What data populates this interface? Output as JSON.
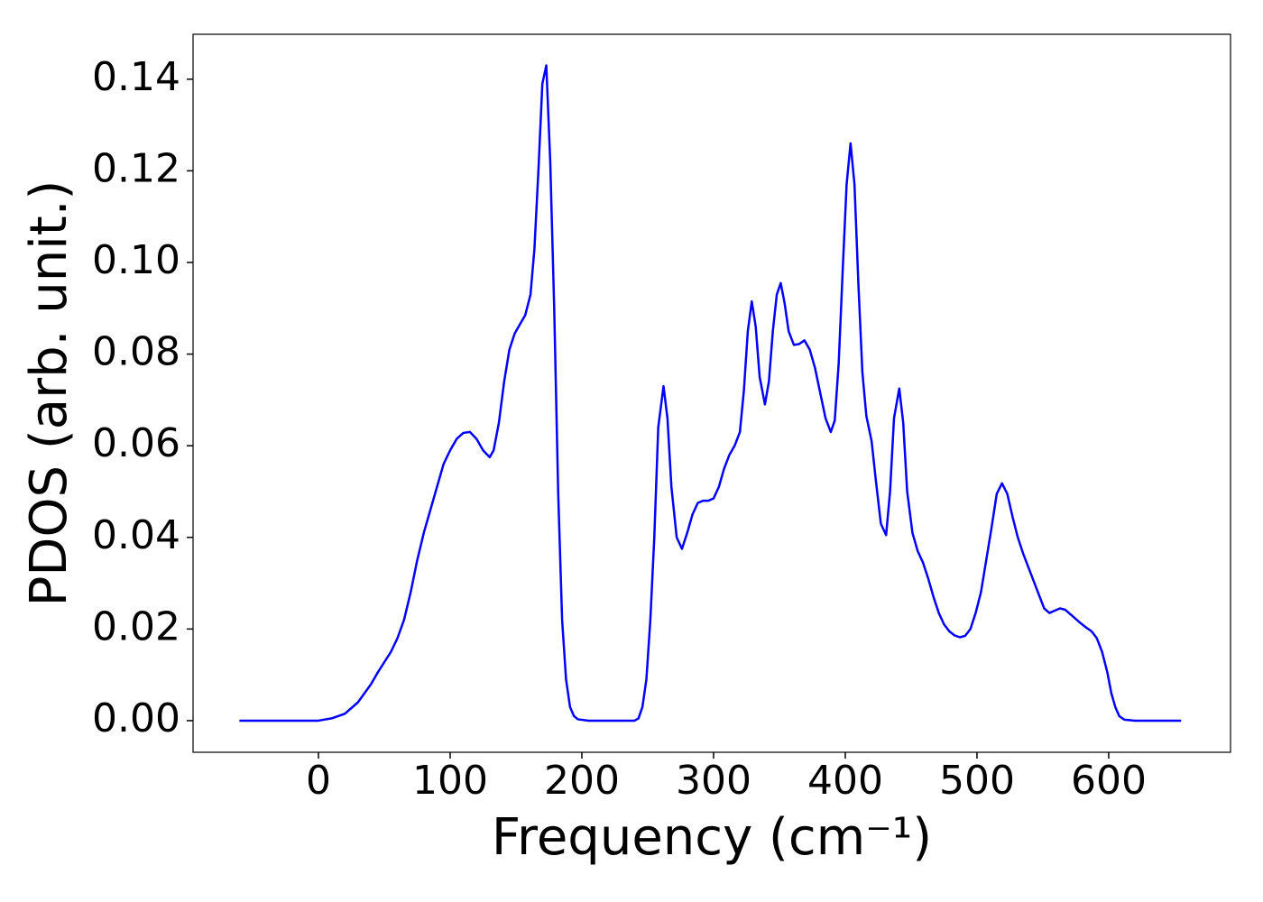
{
  "chart_data": {
    "type": "line",
    "x_label": "Frequency (cm⁻¹)",
    "y_label": "PDOS (arb. unit.)",
    "color": "#0000ff",
    "xlim": [
      -95.2,
      692.5
    ],
    "ylim": [
      -0.0069,
      0.1498
    ],
    "xticks": [
      0,
      100,
      200,
      300,
      400,
      500,
      600
    ],
    "yticks": [
      {
        "value": 0,
        "label": "0.00"
      },
      0.02,
      0.04,
      0.06,
      0.08,
      {
        "value": 0.1,
        "label": "0.10"
      },
      0.12,
      0.14
    ],
    "x": [
      -60,
      0,
      10,
      20,
      30,
      40,
      45,
      55,
      60,
      65,
      70,
      75,
      80,
      85,
      90,
      95,
      100,
      105,
      110,
      115,
      120,
      125,
      130,
      133,
      137,
      141,
      145,
      149,
      153,
      157,
      161,
      164,
      167,
      170,
      173,
      176,
      179,
      182,
      185,
      188,
      191,
      194,
      197,
      205,
      240,
      243,
      246,
      249,
      252,
      255,
      258,
      262,
      265,
      268,
      272,
      276,
      280,
      284,
      288,
      292,
      296,
      300,
      304,
      308,
      312,
      316,
      320,
      323,
      326,
      329,
      332,
      335,
      339,
      342,
      345,
      348,
      351,
      354,
      357,
      361,
      365,
      369,
      373,
      377,
      381,
      385,
      389,
      392,
      395,
      398,
      401,
      404,
      407,
      410,
      413,
      416,
      420,
      423,
      427,
      431,
      434,
      437,
      441,
      444,
      447,
      451,
      455,
      459,
      463,
      467,
      471,
      475,
      479,
      483,
      487,
      491,
      495,
      499,
      503,
      507,
      511,
      515,
      519,
      523,
      527,
      531,
      535,
      539,
      543,
      547,
      551,
      555,
      559,
      563,
      567,
      571,
      575,
      579,
      583,
      587,
      591,
      595,
      599,
      602,
      605,
      608,
      612,
      620,
      655
    ],
    "values": [
      0,
      0,
      0.0005,
      0.0015,
      0.004,
      0.008,
      0.0105,
      0.015,
      0.018,
      0.022,
      0.028,
      0.035,
      0.041,
      0.046,
      0.051,
      0.056,
      0.059,
      0.0615,
      0.0628,
      0.063,
      0.0615,
      0.059,
      0.0575,
      0.059,
      0.065,
      0.074,
      0.081,
      0.0845,
      0.0865,
      0.0885,
      0.093,
      0.103,
      0.12,
      0.139,
      0.143,
      0.122,
      0.09,
      0.05,
      0.022,
      0.009,
      0.003,
      0.001,
      0.0003,
      0,
      0,
      0.0005,
      0.003,
      0.009,
      0.022,
      0.04,
      0.064,
      0.073,
      0.066,
      0.051,
      0.04,
      0.0375,
      0.041,
      0.045,
      0.0475,
      0.048,
      0.048,
      0.0485,
      0.051,
      0.055,
      0.058,
      0.06,
      0.063,
      0.072,
      0.085,
      0.0915,
      0.086,
      0.075,
      0.069,
      0.074,
      0.085,
      0.093,
      0.0955,
      0.091,
      0.085,
      0.082,
      0.0822,
      0.083,
      0.081,
      0.077,
      0.0715,
      0.066,
      0.063,
      0.0655,
      0.078,
      0.098,
      0.117,
      0.126,
      0.117,
      0.095,
      0.076,
      0.0665,
      0.061,
      0.053,
      0.043,
      0.0405,
      0.05,
      0.066,
      0.0725,
      0.065,
      0.05,
      0.041,
      0.037,
      0.0345,
      0.031,
      0.027,
      0.0235,
      0.021,
      0.0195,
      0.0186,
      0.0182,
      0.0185,
      0.02,
      0.0235,
      0.028,
      0.035,
      0.042,
      0.0495,
      0.0518,
      0.0495,
      0.0445,
      0.04,
      0.0365,
      0.0335,
      0.0305,
      0.0275,
      0.0245,
      0.0235,
      0.024,
      0.0245,
      0.0242,
      0.0232,
      0.0222,
      0.0212,
      0.0203,
      0.0195,
      0.018,
      0.015,
      0.0105,
      0.006,
      0.003,
      0.001,
      0.0002,
      0,
      0
    ]
  }
}
